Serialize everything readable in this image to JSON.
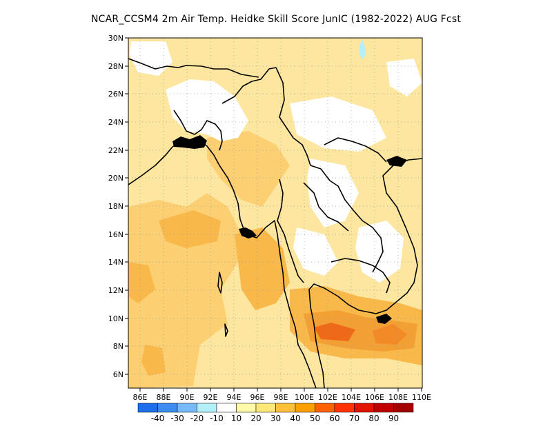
{
  "title": "NCAR_CCSM4  2m Air Temp. Heidke Skill Score JunIC (1982-2022) AUG Fcst",
  "map": {
    "lat_ticks": [
      "30N",
      "28N",
      "26N",
      "24N",
      "22N",
      "20N",
      "18N",
      "16N",
      "14N",
      "12N",
      "10N",
      "8N",
      "6N"
    ],
    "lon_ticks": [
      "86E",
      "88E",
      "90E",
      "92E",
      "94E",
      "96E",
      "98E",
      "100E",
      "102E",
      "104E",
      "106E",
      "108E",
      "110E"
    ],
    "lat_range": [
      5,
      30
    ],
    "lon_range": [
      85,
      110
    ],
    "grid": true
  },
  "colorbar": {
    "colors": [
      "#1e6eeb",
      "#3c8cf0",
      "#78b9fa",
      "#b4f0fa",
      "#ffffff",
      "#fffaaa",
      "#ffe878",
      "#ffc03c",
      "#ffa000",
      "#ff6000",
      "#ff3200",
      "#e11400",
      "#c00000",
      "#a50000"
    ],
    "labels": [
      "-40",
      "-30",
      "-20",
      "-10",
      "10",
      "20",
      "30",
      "40",
      "50",
      "60",
      "70",
      "80",
      "90"
    ]
  },
  "colors": {
    "ocean_light": "#fde7a0",
    "land_mid": "#fccf72",
    "warm": "#f8b84a",
    "hot": "#f2a033",
    "hottest": "#ef6a18"
  }
}
